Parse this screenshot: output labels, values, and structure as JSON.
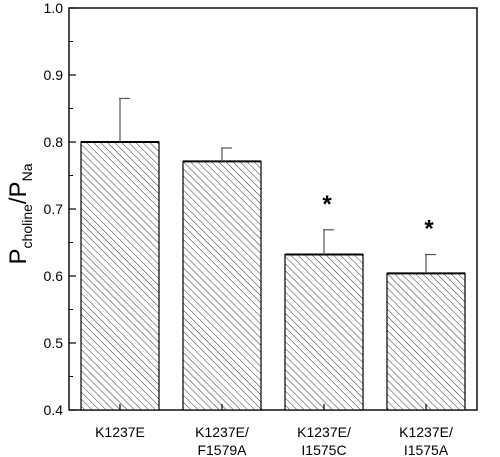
{
  "chart_data": {
    "type": "bar",
    "title": "",
    "xlabel": "",
    "ylabel": {
      "main": "P",
      "sub1": "choline",
      "slash": "/P",
      "sub2": "Na"
    },
    "ylim": [
      0.4,
      1.0
    ],
    "yticks": [
      "0.4",
      "0.5",
      "0.6",
      "0.7",
      "0.8",
      "0.9",
      "1.0"
    ],
    "categories": [
      [
        "K1237E"
      ],
      [
        "K1237E/",
        "F1579A"
      ],
      [
        "K1237E/",
        "I1575C"
      ],
      [
        "K1237E/",
        "I1575A"
      ]
    ],
    "values": [
      0.8,
      0.771,
      0.632,
      0.604
    ],
    "errors": [
      0.065,
      0.02,
      0.037,
      0.028
    ],
    "annotations": [
      "",
      "",
      "*",
      "*"
    ],
    "fill_pattern": "diagonal-hatch",
    "grid": false,
    "legend": "none"
  }
}
